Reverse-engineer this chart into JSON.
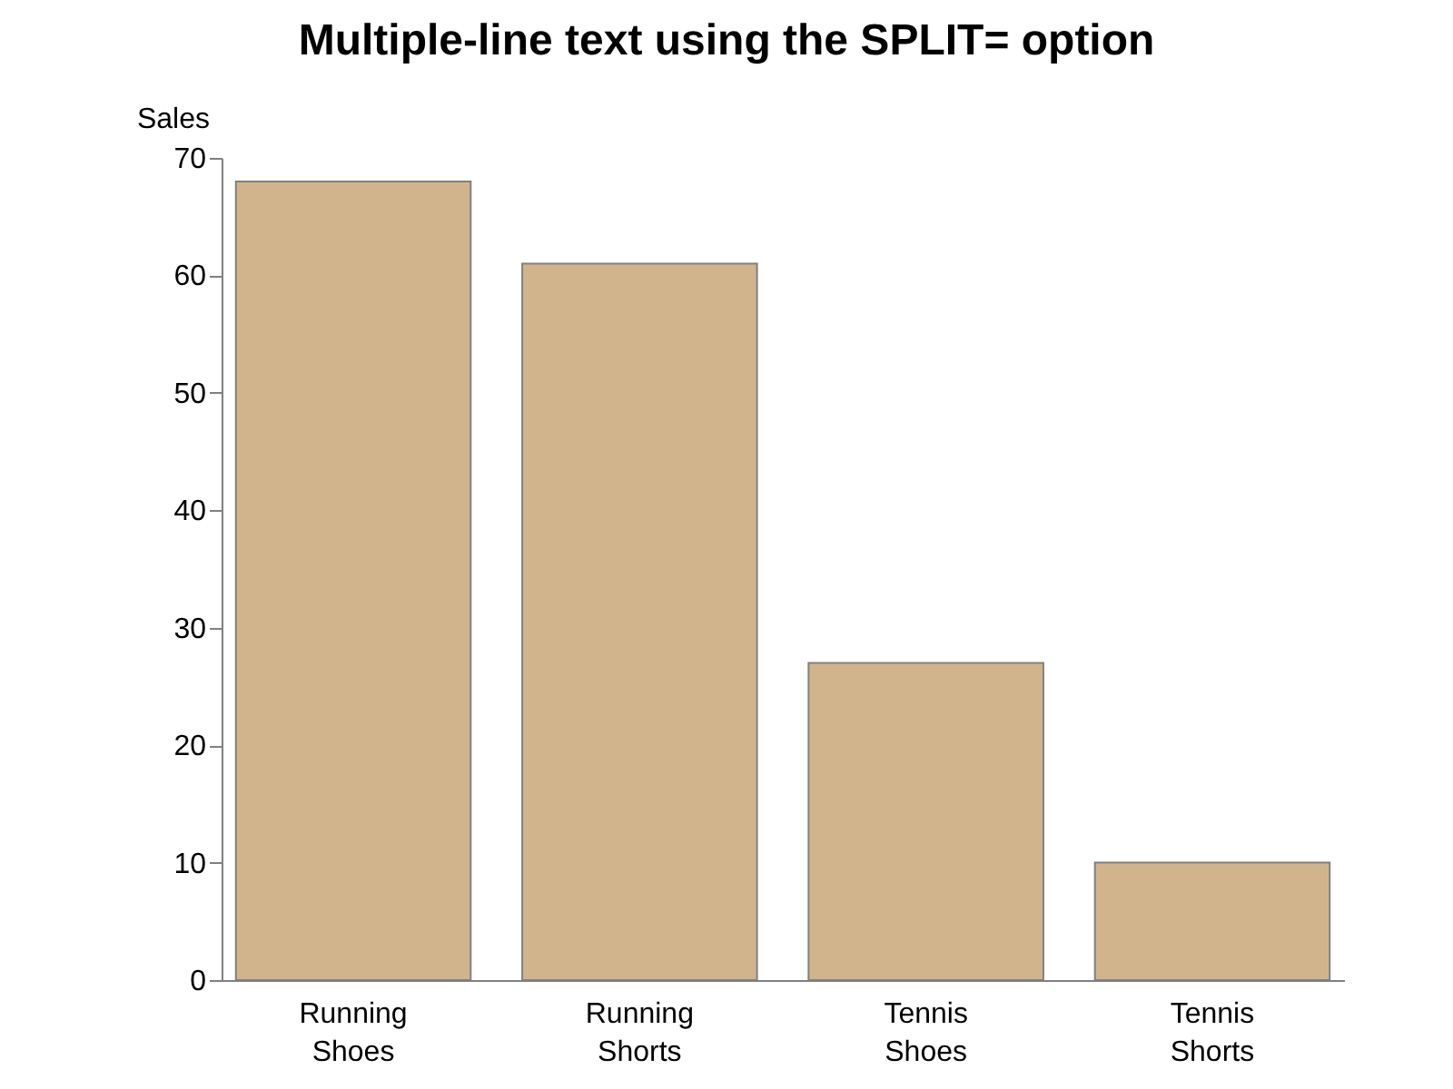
{
  "chart_data": {
    "type": "bar",
    "title": "Multiple-line text using the SPLIT= option",
    "ylabel": "Sales",
    "categories": [
      "Running Shoes",
      "Running Shorts",
      "Tennis Shoes",
      "Tennis Shorts"
    ],
    "values": [
      68,
      61,
      27,
      10
    ],
    "color": "#d2b48c",
    "ylim": [
      0,
      70
    ],
    "yticks": [
      0,
      10,
      20,
      30,
      40,
      50,
      60,
      70
    ],
    "grid": false
  }
}
